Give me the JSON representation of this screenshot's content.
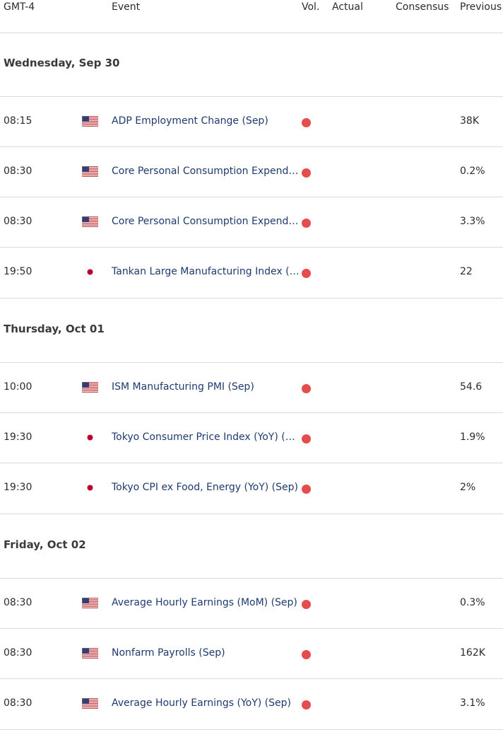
{
  "header": {
    "tz": "GMT-4",
    "event": "Event",
    "vol": "Vol.",
    "actual": "Actual",
    "consensus": "Consensus",
    "previous": "Previous"
  },
  "colors": {
    "high_vol": "#e74c4c",
    "event_link": "#1f3a6e",
    "divider": "#d9d9d9"
  },
  "days": [
    {
      "label": "Wednesday, Sep 30",
      "events": [
        {
          "time": "08:15",
          "country": "us",
          "name": "ADP Employment Change (Sep)",
          "actual": "",
          "consensus": "",
          "previous": "38K"
        },
        {
          "time": "08:30",
          "country": "us",
          "name": "Core Personal Consumption Expendit…",
          "actual": "",
          "consensus": "",
          "previous": "0.2%"
        },
        {
          "time": "08:30",
          "country": "us",
          "name": "Core Personal Consumption Expendit…",
          "actual": "",
          "consensus": "",
          "previous": "3.3%"
        },
        {
          "time": "19:50",
          "country": "jp",
          "name": "Tankan Large Manufacturing Index (…",
          "actual": "",
          "consensus": "",
          "previous": "22"
        }
      ]
    },
    {
      "label": "Thursday, Oct 01",
      "events": [
        {
          "time": "10:00",
          "country": "us",
          "name": "ISM Manufacturing PMI (Sep)",
          "actual": "",
          "consensus": "",
          "previous": "54.6"
        },
        {
          "time": "19:30",
          "country": "jp",
          "name": "Tokyo Consumer Price Index (YoY) (S…",
          "actual": "",
          "consensus": "",
          "previous": "1.9%"
        },
        {
          "time": "19:30",
          "country": "jp",
          "name": "Tokyo CPI ex Food, Energy (YoY) (Sep)",
          "actual": "",
          "consensus": "",
          "previous": "2%"
        }
      ]
    },
    {
      "label": "Friday, Oct 02",
      "events": [
        {
          "time": "08:30",
          "country": "us",
          "name": "Average Hourly Earnings (MoM) (Sep)",
          "actual": "",
          "consensus": "",
          "previous": "0.3%"
        },
        {
          "time": "08:30",
          "country": "us",
          "name": "Nonfarm Payrolls (Sep)",
          "actual": "",
          "consensus": "",
          "previous": "162K"
        },
        {
          "time": "08:30",
          "country": "us",
          "name": "Average Hourly Earnings (YoY) (Sep)",
          "actual": "",
          "consensus": "",
          "previous": "3.1%"
        }
      ]
    }
  ]
}
